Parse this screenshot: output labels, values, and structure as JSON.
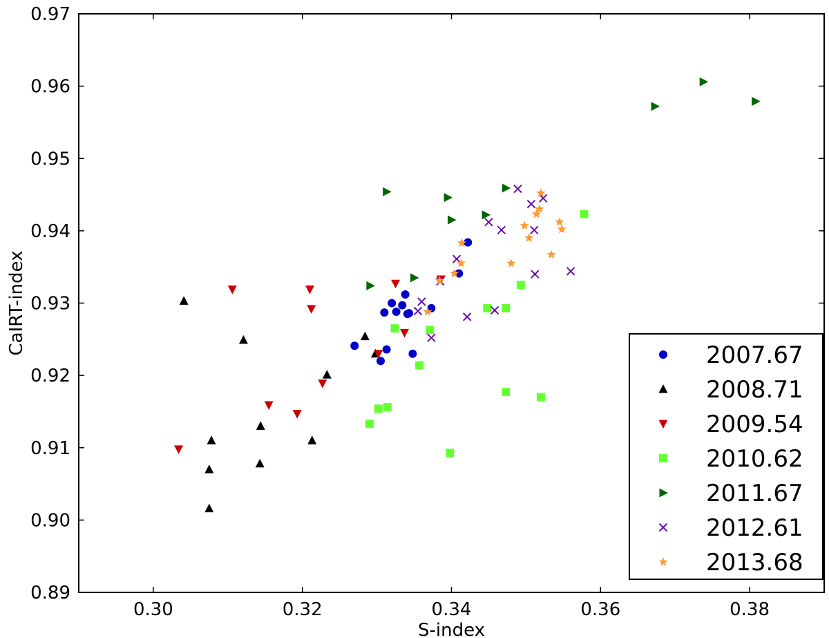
{
  "chart_data": {
    "type": "scatter",
    "title": "",
    "xlabel": "S-index",
    "ylabel": "CaIRT-index",
    "xlim": [
      0.29,
      0.39
    ],
    "ylim": [
      0.89,
      0.97
    ],
    "xticks": [
      "0.30",
      "0.32",
      "0.34",
      "0.36",
      "0.38"
    ],
    "yticks": [
      "0.89",
      "0.90",
      "0.91",
      "0.92",
      "0.93",
      "0.94",
      "0.95",
      "0.96",
      "0.97"
    ],
    "grid": false,
    "legend_position": "lower-right",
    "series": [
      {
        "name": "2007.67",
        "color": "#0000cc",
        "marker": "circle",
        "points": [
          [
            0.327,
            0.9241
          ],
          [
            0.3305,
            0.922
          ],
          [
            0.331,
            0.9287
          ],
          [
            0.3313,
            0.9236
          ],
          [
            0.332,
            0.93
          ],
          [
            0.3326,
            0.9288
          ],
          [
            0.3334,
            0.9297
          ],
          [
            0.3338,
            0.9312
          ],
          [
            0.3341,
            0.9285
          ],
          [
            0.3343,
            0.9286
          ],
          [
            0.3348,
            0.923
          ],
          [
            0.3373,
            0.9293
          ],
          [
            0.341,
            0.9341
          ],
          [
            0.3422,
            0.9384
          ]
        ]
      },
      {
        "name": "2008.71",
        "color": "#000000",
        "marker": "triangle-up",
        "points": [
          [
            0.3041,
            0.9303
          ],
          [
            0.3075,
            0.9016
          ],
          [
            0.3075,
            0.907
          ],
          [
            0.3078,
            0.911
          ],
          [
            0.3121,
            0.9249
          ],
          [
            0.3143,
            0.9078
          ],
          [
            0.3144,
            0.913
          ],
          [
            0.3213,
            0.911
          ],
          [
            0.3233,
            0.9201
          ],
          [
            0.3284,
            0.9254
          ],
          [
            0.3298,
            0.923
          ]
        ]
      },
      {
        "name": "2009.54",
        "color": "#cc0000",
        "marker": "triangle-down",
        "points": [
          [
            0.3034,
            0.9098
          ],
          [
            0.3106,
            0.9319
          ],
          [
            0.3155,
            0.9159
          ],
          [
            0.3193,
            0.9147
          ],
          [
            0.321,
            0.9319
          ],
          [
            0.3212,
            0.9292
          ],
          [
            0.3227,
            0.9189
          ],
          [
            0.3302,
            0.923
          ],
          [
            0.3325,
            0.9327
          ],
          [
            0.3337,
            0.9259
          ],
          [
            0.3386,
            0.9333
          ]
        ]
      },
      {
        "name": "2010.62",
        "color": "#66ff33",
        "marker": "square",
        "points": [
          [
            0.329,
            0.9133
          ],
          [
            0.3302,
            0.9154
          ],
          [
            0.3314,
            0.9156
          ],
          [
            0.3324,
            0.9265
          ],
          [
            0.3357,
            0.9214
          ],
          [
            0.3371,
            0.9263
          ],
          [
            0.3398,
            0.9093
          ],
          [
            0.3448,
            0.9293
          ],
          [
            0.3473,
            0.9293
          ],
          [
            0.3473,
            0.9177
          ],
          [
            0.3493,
            0.9325
          ],
          [
            0.352,
            0.917
          ],
          [
            0.3578,
            0.9423
          ]
        ]
      },
      {
        "name": "2011.67",
        "color": "#006600",
        "marker": "triangle-right",
        "points": [
          [
            0.3291,
            0.9324
          ],
          [
            0.3313,
            0.9454
          ],
          [
            0.335,
            0.9335
          ],
          [
            0.3395,
            0.9446
          ],
          [
            0.34,
            0.9415
          ],
          [
            0.3446,
            0.9422
          ],
          [
            0.3473,
            0.9459
          ],
          [
            0.3673,
            0.9572
          ],
          [
            0.3738,
            0.9606
          ],
          [
            0.3808,
            0.9579
          ]
        ]
      },
      {
        "name": "2012.61",
        "color": "#6a0dad",
        "marker": "x",
        "points": [
          [
            0.3355,
            0.9289
          ],
          [
            0.336,
            0.9302
          ],
          [
            0.3373,
            0.9252
          ],
          [
            0.3385,
            0.933
          ],
          [
            0.3407,
            0.9361
          ],
          [
            0.3421,
            0.9281
          ],
          [
            0.345,
            0.9412
          ],
          [
            0.3458,
            0.929
          ],
          [
            0.3467,
            0.9401
          ],
          [
            0.3489,
            0.9458
          ],
          [
            0.3507,
            0.9437
          ],
          [
            0.3511,
            0.9401
          ],
          [
            0.3512,
            0.934
          ],
          [
            0.3523,
            0.9445
          ],
          [
            0.356,
            0.9344
          ]
        ]
      },
      {
        "name": "2013.68",
        "color": "#ff9933",
        "marker": "star",
        "points": [
          [
            0.3368,
            0.9288
          ],
          [
            0.3384,
            0.9331
          ],
          [
            0.3404,
            0.9341
          ],
          [
            0.3413,
            0.9355
          ],
          [
            0.3414,
            0.9383
          ],
          [
            0.348,
            0.9355
          ],
          [
            0.3498,
            0.9407
          ],
          [
            0.3504,
            0.939
          ],
          [
            0.3514,
            0.9423
          ],
          [
            0.3518,
            0.943
          ],
          [
            0.352,
            0.9452
          ],
          [
            0.3534,
            0.9367
          ],
          [
            0.3545,
            0.9412
          ],
          [
            0.3548,
            0.9402
          ]
        ]
      }
    ]
  }
}
